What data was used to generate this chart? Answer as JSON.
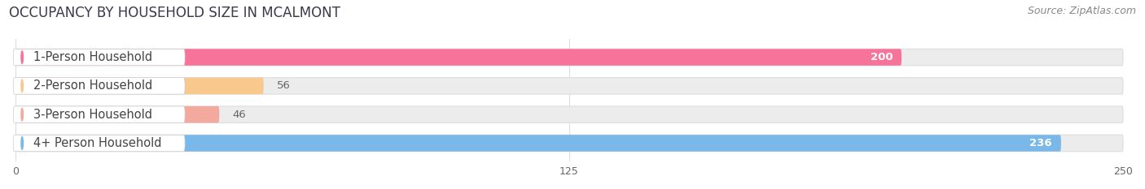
{
  "title": "OCCUPANCY BY HOUSEHOLD SIZE IN MCALMONT",
  "source": "Source: ZipAtlas.com",
  "categories": [
    "1-Person Household",
    "2-Person Household",
    "3-Person Household",
    "4+ Person Household"
  ],
  "values": [
    200,
    56,
    46,
    236
  ],
  "bar_colors": [
    "#f7739a",
    "#f8c88c",
    "#f4a99e",
    "#79b8e8"
  ],
  "bar_bg_colors": [
    "#ececec",
    "#ececec",
    "#ececec",
    "#ececec"
  ],
  "xlim": [
    0,
    250
  ],
  "xticks": [
    0,
    125,
    250
  ],
  "title_fontsize": 12,
  "source_fontsize": 9,
  "label_fontsize": 10.5,
  "value_fontsize": 9.5,
  "bg_color": "#ffffff"
}
